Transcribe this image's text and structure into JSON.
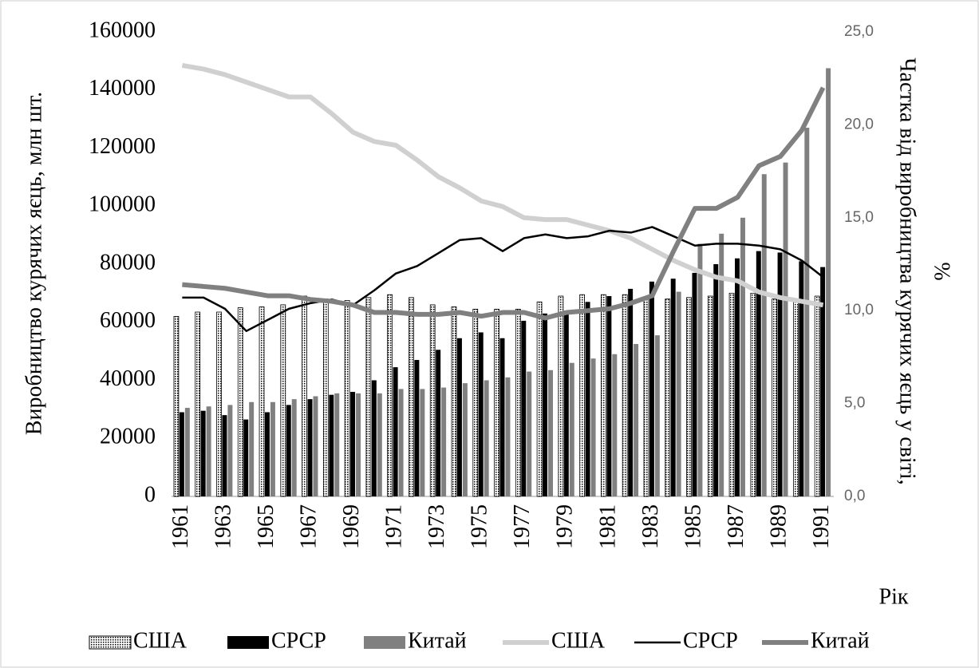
{
  "chart_data": {
    "type": "bar",
    "categories": [
      "1961",
      null,
      "1963",
      null,
      "1965",
      null,
      "1967",
      null,
      "1969",
      null,
      "1971",
      null,
      "1973",
      null,
      "1975",
      null,
      "1977",
      null,
      "1979",
      null,
      "1981",
      null,
      "1983",
      null,
      "1985",
      null,
      "1987",
      null,
      "1989",
      null,
      "1991"
    ],
    "x_label": "Рік",
    "y_label": "Виробництво курячих яєць, млн шт.",
    "y2_label": [
      "Частка від виробництва курячих яєць у світі,",
      "%"
    ],
    "ylim": [
      0,
      160000
    ],
    "yticks": [
      0,
      20000,
      40000,
      60000,
      80000,
      100000,
      120000,
      140000,
      160000
    ],
    "y2lim": [
      0,
      25
    ],
    "y2ticks": [
      {
        "value": 0,
        "label": "0,0"
      },
      {
        "value": 5,
        "label": "5,0"
      },
      {
        "value": 10,
        "label": "10,0"
      },
      {
        "value": 15,
        "label": "15,0"
      },
      {
        "value": 20,
        "label": "20,0"
      },
      {
        "value": 25,
        "label": "25,0"
      }
    ],
    "legend": "bottom",
    "series": [
      {
        "name": "США",
        "type": "bar",
        "color": "#000000",
        "pattern": "dots",
        "values": [
          62000,
          63500,
          63500,
          65000,
          65300,
          66000,
          69000,
          68000,
          67500,
          68500,
          69500,
          68500,
          66000,
          65300,
          64500,
          64500,
          64500,
          67000,
          69000,
          69500,
          69500,
          69500,
          68500,
          68000,
          68500,
          69000,
          70000,
          70000,
          68000,
          67000,
          69000
        ]
      },
      {
        "name": "СРСР",
        "type": "bar",
        "color": "#000000",
        "values": [
          29000,
          29500,
          28000,
          26500,
          29000,
          31500,
          33500,
          35000,
          36000,
          40000,
          44500,
          47000,
          50500,
          54500,
          56500,
          54500,
          60500,
          63000,
          64000,
          67000,
          69000,
          71500,
          74000,
          75000,
          77000,
          80000,
          82000,
          84500,
          84000,
          81000,
          79000
        ]
      },
      {
        "name": "Китай",
        "type": "bar",
        "color": "#808080",
        "values": [
          30500,
          31000,
          31500,
          32500,
          32500,
          33500,
          34500,
          35500,
          35500,
          35500,
          37000,
          37000,
          37500,
          39000,
          40000,
          41000,
          43000,
          43500,
          46000,
          47500,
          49000,
          52500,
          55500,
          70500,
          87000,
          90500,
          96000,
          111000,
          115000,
          127000,
          147500
        ]
      },
      {
        "name": "США",
        "type": "line",
        "axis": "y2",
        "color": "#d0d0d0",
        "width": 6,
        "values": [
          23.2,
          23.0,
          22.7,
          22.3,
          21.9,
          21.5,
          21.5,
          20.6,
          19.6,
          19.1,
          18.9,
          18.1,
          17.2,
          16.6,
          15.9,
          15.6,
          15.0,
          14.9,
          14.9,
          14.6,
          14.3,
          13.9,
          13.3,
          12.7,
          12.2,
          11.8,
          11.6,
          11.0,
          10.7,
          10.5,
          10.3
        ]
      },
      {
        "name": "СРСР",
        "type": "line",
        "axis": "y2",
        "color": "#000000",
        "width": 2.5,
        "values": [
          10.7,
          10.7,
          10.1,
          8.9,
          9.5,
          10.1,
          10.4,
          10.6,
          10.3,
          11.1,
          12.0,
          12.4,
          13.1,
          13.8,
          13.9,
          13.2,
          13.9,
          14.1,
          13.9,
          14.0,
          14.3,
          14.2,
          14.5,
          14.0,
          13.5,
          13.6,
          13.6,
          13.5,
          13.3,
          12.7,
          11.8
        ]
      },
      {
        "name": "Китай",
        "type": "line",
        "axis": "y2",
        "color": "#808080",
        "width": 6,
        "values": [
          11.4,
          11.3,
          11.2,
          11.0,
          10.8,
          10.8,
          10.6,
          10.5,
          10.3,
          9.9,
          9.9,
          9.8,
          9.8,
          9.9,
          9.7,
          9.9,
          9.9,
          9.6,
          9.9,
          10.0,
          10.1,
          10.4,
          10.8,
          13.2,
          15.5,
          15.5,
          16.1,
          17.8,
          18.3,
          19.7,
          22.0
        ]
      }
    ]
  }
}
